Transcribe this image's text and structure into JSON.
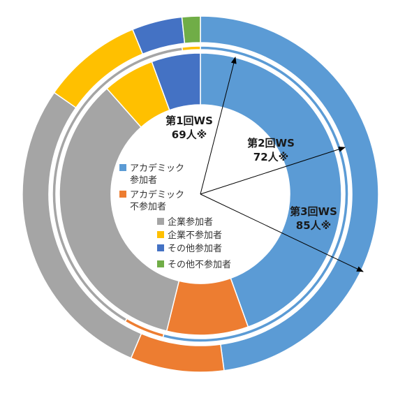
{
  "chart_data": {
    "type": "pie",
    "subtype": "multi-ring doughnut",
    "categories": [
      "アカデミック参加者",
      "アカデミック不参加者",
      "企業参加者",
      "企業不参加者",
      "その他参加者",
      "その他不参加者"
    ],
    "colors": [
      "#5b9bd5",
      "#ed7d31",
      "#a5a5a5",
      "#ffc000",
      "#4472c4",
      "#70ad47"
    ],
    "series": [
      {
        "name": "第1回WS 69人※",
        "values": [
          40.5,
          8.5,
          31.5,
          5.4,
          5.1,
          0
        ]
      },
      {
        "name": "第2回WS 72人※",
        "values": [
          46.5,
          3.8,
          34,
          1.7,
          0,
          0
        ]
      },
      {
        "name": "第3回WS 85人※",
        "values": [
          46.2,
          8.2,
          27.3,
          8.8,
          4.4,
          1.6
        ]
      }
    ],
    "ring_labels": [
      {
        "line1": "第1回WS",
        "line2": "69人※"
      },
      {
        "line1": "第2回WS",
        "line2": "72人※"
      },
      {
        "line1": "第3回WS",
        "line2": "85人※"
      }
    ],
    "legend": [
      {
        "line1": "アカデミック",
        "line2": "参加者",
        "color": "#5b9bd5"
      },
      {
        "line1": "アカデミック",
        "line2": "不参加者",
        "color": "#ed7d31"
      },
      {
        "line1": "企業参加者",
        "line2": "",
        "color": "#a5a5a5"
      },
      {
        "line1": "企業不参加者",
        "line2": "",
        "color": "#ffc000"
      },
      {
        "line1": "その他参加者",
        "line2": "",
        "color": "#4472c4"
      },
      {
        "line1": "その他不参加者",
        "line2": "",
        "color": "#70ad47"
      }
    ],
    "legend_position": "center"
  }
}
